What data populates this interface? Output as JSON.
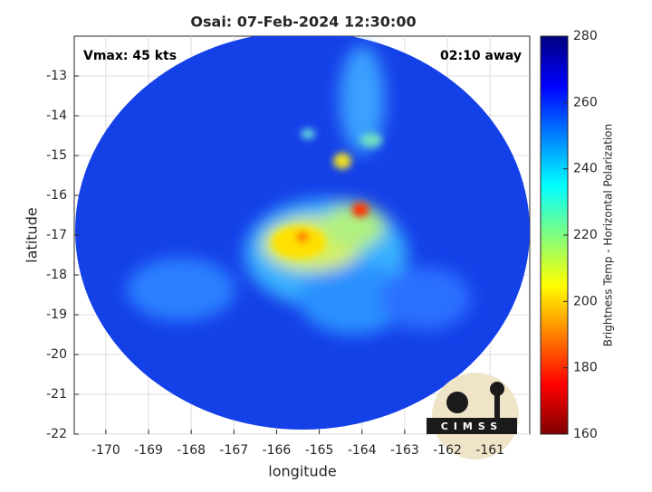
{
  "chart_data": {
    "type": "image",
    "title": "Osai: 07-Feb-2024 12:30:00",
    "annotations": [
      "Vmax: 45 kts",
      "02:10 away"
    ],
    "xlabel": "longitude",
    "ylabel": "latitude",
    "xlim": [
      -170.74,
      -160.07
    ],
    "ylim": [
      -22,
      -12
    ],
    "xticks": [
      -170,
      -169,
      -168,
      -167,
      -166,
      -165,
      -164,
      -163,
      -162,
      -161
    ],
    "yticks": [
      -13,
      -14,
      -15,
      -16,
      -17,
      -18,
      -19,
      -20,
      -21,
      -22
    ],
    "grid": true,
    "colorbar": {
      "label": "Brightness Temp - Horizontal Polarization",
      "clim": [
        160,
        280
      ],
      "ticks": [
        160,
        180,
        200,
        220,
        240,
        260,
        280
      ],
      "colormap": [
        "#7f0000",
        "#ff0000",
        "#ff8000",
        "#ffff00",
        "#80ff80",
        "#00ffff",
        "#0080ff",
        "#0000ff",
        "#00007f"
      ]
    },
    "logo_text": "CIMSS"
  }
}
